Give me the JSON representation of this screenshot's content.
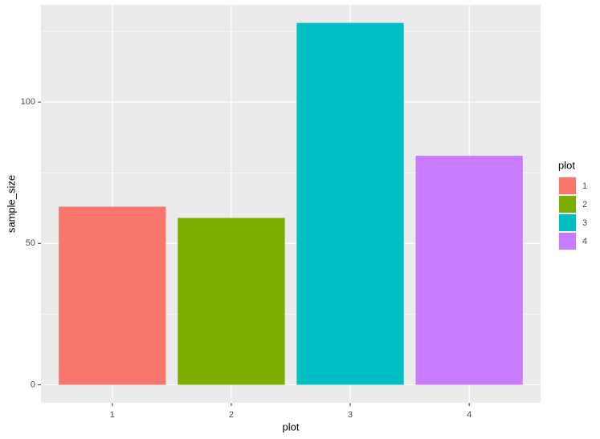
{
  "chart_data": {
    "type": "bar",
    "categories": [
      "1",
      "2",
      "3",
      "4"
    ],
    "values": [
      63,
      59,
      128,
      81
    ],
    "colors": [
      "#f8766d",
      "#7cae00",
      "#00bfc4",
      "#c77cff"
    ],
    "x_label": "plot",
    "y_label": "sample_size",
    "legend_title": "plot",
    "legend": "right",
    "ylim": [
      -6.4,
      134.4
    ],
    "yticks": [
      0,
      50,
      100
    ],
    "y_minor_ticks": [
      25,
      75,
      125
    ],
    "grid": true
  }
}
